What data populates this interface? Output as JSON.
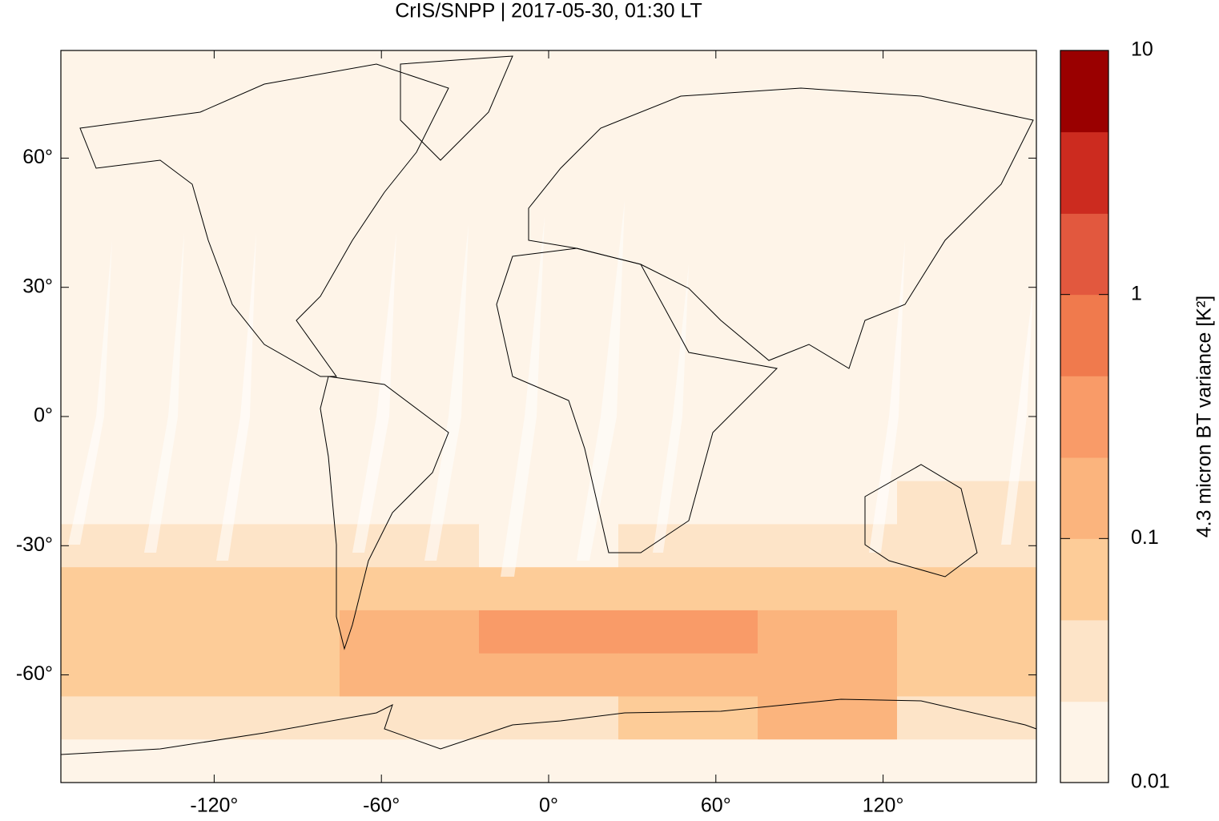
{
  "chart_data": {
    "type": "heatmap",
    "title": "CrIS/SNPP | 2017-05-30, 01:30 LT",
    "xlim": [
      -175,
      175
    ],
    "ylim": [
      -85,
      85
    ],
    "xticks": [
      {
        "value": -120,
        "label": "-120°"
      },
      {
        "value": -60,
        "label": "-60°"
      },
      {
        "value": 0,
        "label": "0°"
      },
      {
        "value": 60,
        "label": "60°"
      },
      {
        "value": 120,
        "label": "120°"
      }
    ],
    "yticks": [
      {
        "value": 60,
        "label": "60°"
      },
      {
        "value": 30,
        "label": "30°"
      },
      {
        "value": 0,
        "label": "0°"
      },
      {
        "value": -30,
        "label": "-30°"
      },
      {
        "value": -60,
        "label": "-60°"
      }
    ],
    "x_bins": [
      -175,
      -125,
      -75,
      -25,
      25,
      75,
      125,
      175
    ],
    "y_bins": [
      85,
      75,
      65,
      55,
      45,
      35,
      25,
      15,
      5,
      -5,
      -15,
      -25,
      -35,
      -45,
      -55,
      -65,
      -75,
      -85
    ],
    "z": [
      [
        0.012,
        0.012,
        0.012,
        0.012,
        0.012,
        0.012,
        0.012
      ],
      [
        0.012,
        0.012,
        0.012,
        0.012,
        0.012,
        0.012,
        0.012
      ],
      [
        0.012,
        0.012,
        0.012,
        0.012,
        0.012,
        0.012,
        0.012
      ],
      [
        0.013,
        0.013,
        0.013,
        0.013,
        0.013,
        0.013,
        0.013
      ],
      [
        0.014,
        0.014,
        0.014,
        0.014,
        0.014,
        0.014,
        0.014
      ],
      [
        0.015,
        0.015,
        0.015,
        0.015,
        0.015,
        0.015,
        0.015
      ],
      [
        0.016,
        0.02,
        0.016,
        0.015,
        0.016,
        0.02,
        0.016
      ],
      [
        0.015,
        0.015,
        0.015,
        0.015,
        0.015,
        0.015,
        0.015
      ],
      [
        0.016,
        0.016,
        0.016,
        0.016,
        0.016,
        0.016,
        0.016
      ],
      [
        0.017,
        0.017,
        0.017,
        0.017,
        0.017,
        0.017,
        0.017
      ],
      [
        0.02,
        0.018,
        0.017,
        0.016,
        0.017,
        0.02,
        0.025
      ],
      [
        0.04,
        0.03,
        0.025,
        0.02,
        0.025,
        0.03,
        0.035
      ],
      [
        0.05,
        0.05,
        0.06,
        0.08,
        0.07,
        0.05,
        0.06
      ],
      [
        0.06,
        0.07,
        0.2,
        0.3,
        0.25,
        0.1,
        0.07
      ],
      [
        0.05,
        0.06,
        0.12,
        0.1,
        0.1,
        0.2,
        0.06
      ],
      [
        0.03,
        0.03,
        0.04,
        0.04,
        0.05,
        0.1,
        0.04
      ],
      [
        0.02,
        0.02,
        0.02,
        0.02,
        0.02,
        0.02,
        0.02
      ]
    ],
    "colorbar": {
      "label": "4.3 micron BT variance [K²]",
      "log": true,
      "lim": [
        0.01,
        10
      ],
      "ticks": [
        10,
        1,
        0.1,
        0.01
      ],
      "levels": [
        0.01,
        0.0215,
        0.0464,
        0.1,
        0.215,
        0.464,
        1,
        2.15,
        4.64,
        10
      ],
      "colors": [
        "#fef4e8",
        "#fde4c8",
        "#fdcc98",
        "#fbb47d",
        "#f99b68",
        "#f07a4d",
        "#e2583e",
        "#cc2b1f",
        "#9a0000"
      ]
    }
  }
}
